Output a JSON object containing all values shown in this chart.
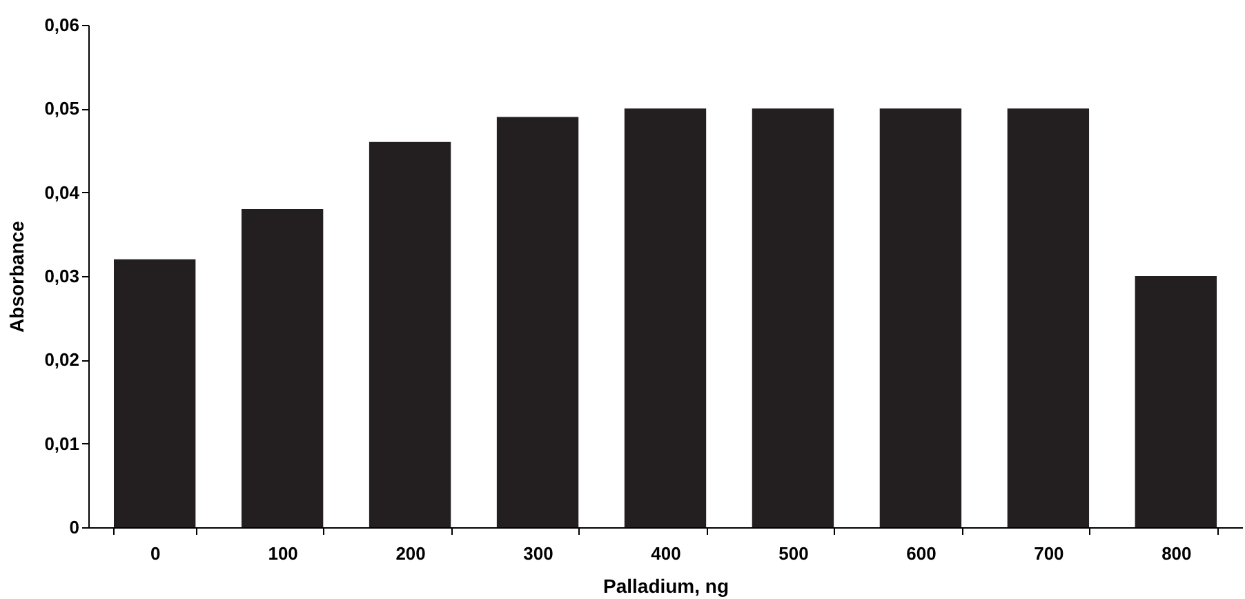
{
  "chart_data": {
    "type": "bar",
    "xlabel": "Palladium, ng",
    "ylabel": "Absorbance",
    "categories": [
      "0",
      "100",
      "200",
      "300",
      "400",
      "500",
      "600",
      "700",
      "800"
    ],
    "values": [
      0.032,
      0.038,
      0.046,
      0.049,
      0.05,
      0.05,
      0.05,
      0.05,
      0.03
    ],
    "color": "#231f20",
    "ylim": [
      0,
      0.06
    ],
    "yticks": [
      0,
      {
        "value": 0.01,
        "label": "0,01"
      },
      {
        "value": 0.02,
        "label": "0,02"
      },
      {
        "value": 0.03,
        "label": "0,03"
      },
      {
        "value": 0.04,
        "label": "0,04"
      },
      {
        "value": 0.05,
        "label": "0,05"
      },
      {
        "value": 0.06,
        "label": "0,06"
      }
    ],
    "grid": false
  }
}
